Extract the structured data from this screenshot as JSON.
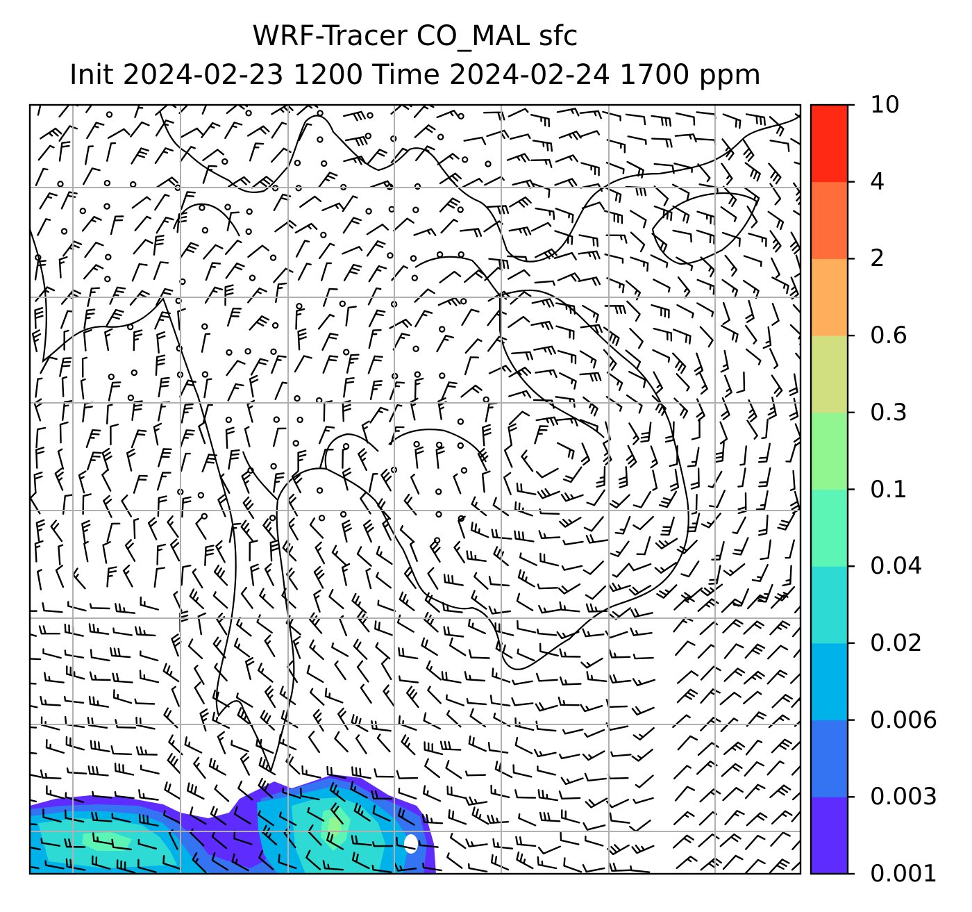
{
  "title": {
    "line1": "WRF-Tracer CO_MAL sfc",
    "line2": "Init 2024-02-23 1200 Time 2024-02-24 1700 ppm"
  },
  "colorbar": {
    "levels": [
      "0.001",
      "0.003",
      "0.006",
      "0.02",
      "0.04",
      "0.1",
      "0.3",
      "0.6",
      "2",
      "4",
      "10"
    ],
    "colors": [
      "#5f2cff",
      "#3474f2",
      "#00b2ea",
      "#2ddad4",
      "#5cf5b6",
      "#91f590",
      "#d1df80",
      "#ffae5c",
      "#ff6e3a",
      "#ff2914"
    ]
  },
  "map": {
    "gridlines": true,
    "grid_color": "#b0b0b0",
    "coastline_color": "#000000",
    "wind_barbs": "black",
    "tracer_plume": "lower-left"
  }
}
